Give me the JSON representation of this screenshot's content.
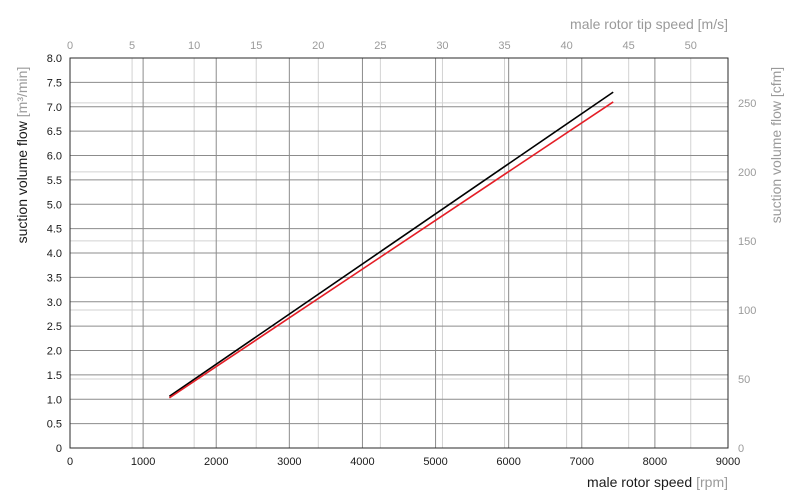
{
  "chart_data": {
    "type": "line",
    "title": "",
    "xlabel": "male rotor speed",
    "xlabel_unit": "[rpm]",
    "ylabel": "suction volume flow",
    "ylabel_unit": "[m³/min]",
    "x2label": "male rotor tip speed [m/s]",
    "y2label": "suction volume flow [cfm]",
    "xlim": [
      0,
      9000
    ],
    "ylim": [
      0,
      8
    ],
    "x2lim": [
      0,
      53
    ],
    "y2lim": [
      0,
      282.5
    ],
    "x_ticks": [
      "0",
      "1000",
      "2000",
      "3000",
      "4000",
      "5000",
      "6000",
      "7000",
      "8000",
      "9000"
    ],
    "y_ticks": [
      "0",
      "0.5",
      "1.0",
      "1.5",
      "2.0",
      "2.5",
      "3.0",
      "3.5",
      "4.0",
      "4.5",
      "5.0",
      "5.5",
      "6.0",
      "6.5",
      "7.0",
      "7.5",
      "8.0"
    ],
    "x2_ticks": [
      "0",
      "5",
      "10",
      "15",
      "20",
      "25",
      "30",
      "35",
      "40",
      "45",
      "50"
    ],
    "y2_ticks": [
      "0",
      "50",
      "100",
      "150",
      "200",
      "250"
    ],
    "grid": true,
    "series": [
      {
        "color": "#000000",
        "x": [
          1360,
          7430
        ],
        "y": [
          1.06,
          7.3
        ]
      },
      {
        "color": "#e41e26",
        "x": [
          1360,
          7430
        ],
        "y": [
          1.03,
          7.1
        ]
      }
    ]
  }
}
